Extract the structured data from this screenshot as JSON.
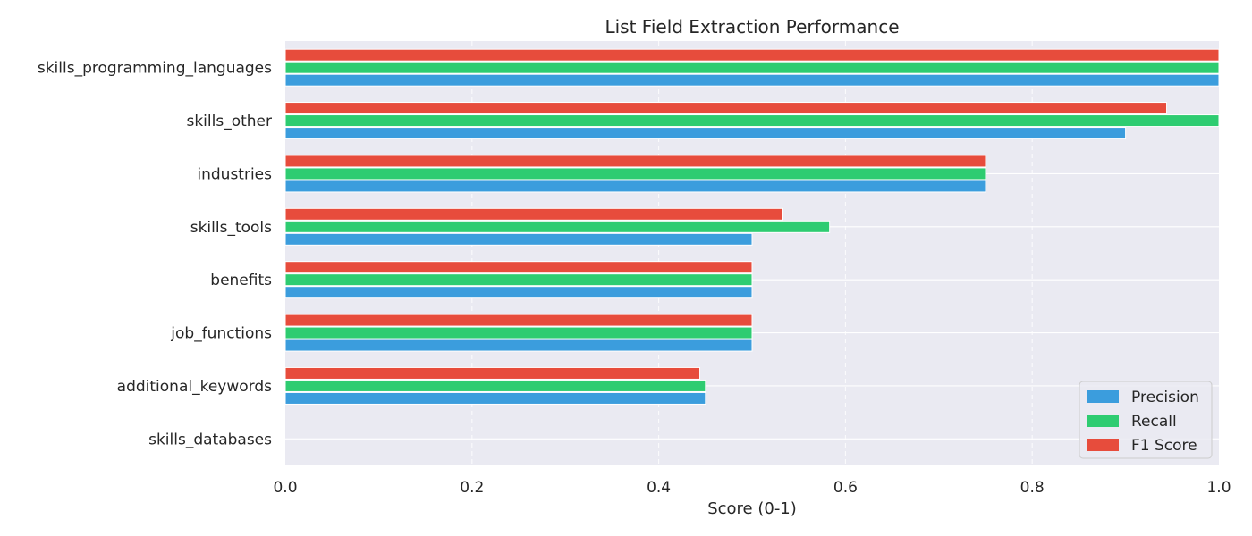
{
  "chart_data": {
    "type": "bar",
    "orientation": "horizontal",
    "title": "List Field Extraction Performance",
    "xlabel": "Score (0-1)",
    "ylabel": "",
    "xlim": [
      0,
      1
    ],
    "xticks": [
      "0.0",
      "0.2",
      "0.4",
      "0.6",
      "0.8",
      "1.0"
    ],
    "categories": [
      "skills_programming_languages",
      "skills_other",
      "industries",
      "skills_tools",
      "benefits",
      "job_functions",
      "additional_keywords",
      "skills_databases"
    ],
    "series": [
      {
        "name": "Precision",
        "color": "#3b9ddd",
        "values": [
          1.0,
          0.9,
          0.75,
          0.5,
          0.5,
          0.5,
          0.45,
          0.0
        ]
      },
      {
        "name": "Recall",
        "color": "#2ecc71",
        "values": [
          1.0,
          1.0,
          0.75,
          0.583,
          0.5,
          0.5,
          0.45,
          0.0
        ]
      },
      {
        "name": "F1 Score",
        "color": "#e74c3c",
        "values": [
          1.0,
          0.944,
          0.75,
          0.533,
          0.5,
          0.5,
          0.444,
          0.0
        ]
      }
    ],
    "grid": true,
    "legend_position": "lower-right"
  }
}
